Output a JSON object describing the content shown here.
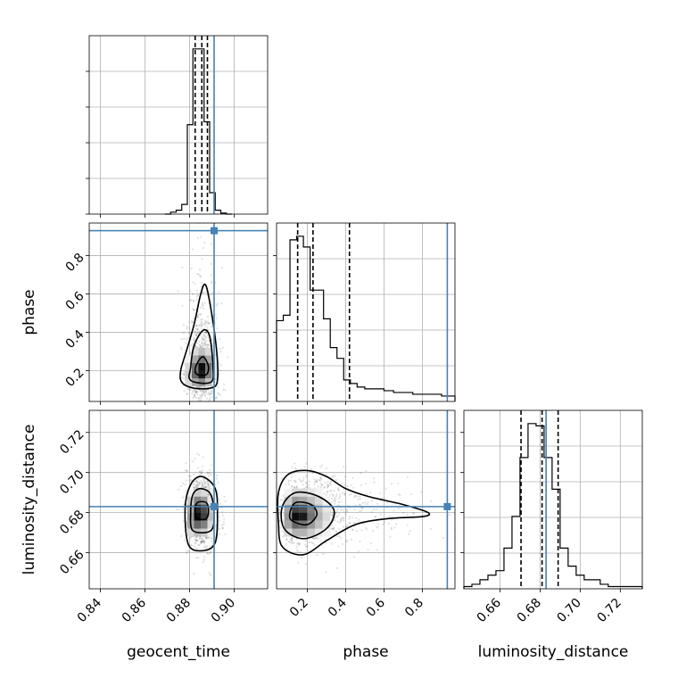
{
  "colors": {
    "truth": "#4682b4",
    "contour": "#000000",
    "grid": "#b0b0b0",
    "points": "#000000"
  },
  "chart_data": {
    "type": "corner",
    "parameters": [
      "geocent_time",
      "phase",
      "luminosity_distance"
    ],
    "axis_labels": {
      "geocent_time": "geocent_time",
      "phase": "phase",
      "luminosity_distance": "luminosity_distance"
    },
    "ranges": {
      "geocent_time": [
        0.835,
        0.915
      ],
      "phase": [
        0.04,
        0.97
      ],
      "luminosity_distance": [
        0.642,
        0.731
      ]
    },
    "ticks": {
      "geocent_time": [
        "0.84",
        "0.86",
        "0.88",
        "0.90"
      ],
      "phase": [
        "0.2",
        "0.4",
        "0.6",
        "0.8"
      ],
      "luminosity_distance": [
        "0.66",
        "0.68",
        "0.70",
        "0.72"
      ]
    },
    "truths": {
      "geocent_time": 0.891,
      "phase": 0.93,
      "luminosity_distance": 0.683
    },
    "quantiles": {
      "geocent_time": [
        0.8825,
        0.8855,
        0.888
      ],
      "phase": [
        0.15,
        0.23,
        0.42
      ],
      "luminosity_distance": [
        0.6705,
        0.681,
        0.689
      ]
    },
    "histograms": {
      "geocent_time": {
        "edges": [
          0.869,
          0.8715,
          0.874,
          0.8765,
          0.879,
          0.8815,
          0.884,
          0.8865,
          0.889,
          0.8915,
          0.894,
          0.8965,
          0.899
        ],
        "counts": [
          0,
          2,
          4,
          10,
          92,
          170,
          170,
          95,
          22,
          4,
          1,
          0
        ]
      },
      "phase": {
        "edges": [
          0.04,
          0.075,
          0.11,
          0.145,
          0.18,
          0.215,
          0.25,
          0.285,
          0.32,
          0.355,
          0.39,
          0.425,
          0.46,
          0.5,
          0.55,
          0.6,
          0.65,
          0.7,
          0.75,
          0.8,
          0.85,
          0.9,
          0.95,
          0.97
        ],
        "counts": [
          45,
          48,
          90,
          92,
          86,
          62,
          62,
          46,
          30,
          24,
          12,
          10,
          8,
          7,
          7,
          6,
          5,
          5,
          4,
          4,
          4,
          3,
          3
        ]
      },
      "luminosity_distance": {
        "edges": [
          0.642,
          0.646,
          0.65,
          0.654,
          0.658,
          0.662,
          0.666,
          0.67,
          0.674,
          0.678,
          0.682,
          0.686,
          0.69,
          0.694,
          0.698,
          0.702,
          0.706,
          0.71,
          0.714,
          0.718,
          0.722,
          0.726,
          0.731
        ],
        "counts": [
          1,
          2,
          4,
          6,
          8,
          18,
          32,
          58,
          73,
          72,
          58,
          44,
          18,
          10,
          6,
          4,
          4,
          2,
          1,
          1,
          1,
          1
        ]
      }
    },
    "contours_2d": {
      "geocent_time__phase": {
        "center": [
          0.8855,
          0.22
        ],
        "levels": [
          [
            [
              0.8835,
              0.18
            ],
            [
              0.8875,
              0.18
            ],
            [
              0.8885,
              0.22
            ],
            [
              0.8865,
              0.27
            ],
            [
              0.8845,
              0.26
            ],
            [
              0.8825,
              0.21
            ]
          ],
          [
            [
              0.8805,
              0.15
            ],
            [
              0.8895,
              0.14
            ],
            [
              0.8905,
              0.22
            ],
            [
              0.889,
              0.38
            ],
            [
              0.886,
              0.41
            ],
            [
              0.882,
              0.33
            ],
            [
              0.8805,
              0.22
            ]
          ],
          [
            [
              0.8765,
              0.14
            ],
            [
              0.8815,
              0.11
            ],
            [
              0.8895,
              0.11
            ],
            [
              0.8925,
              0.15
            ],
            [
              0.892,
              0.32
            ],
            [
              0.889,
              0.56
            ],
            [
              0.887,
              0.65
            ],
            [
              0.885,
              0.6
            ],
            [
              0.882,
              0.44
            ],
            [
              0.8785,
              0.3
            ],
            [
              0.876,
              0.2
            ]
          ]
        ]
      },
      "geocent_time__luminosity_distance": {
        "center": [
          0.8855,
          0.68
        ],
        "levels": [
          [
            [
              0.8835,
              0.677
            ],
            [
              0.8875,
              0.677
            ],
            [
              0.8885,
              0.681
            ],
            [
              0.8875,
              0.685
            ],
            [
              0.8835,
              0.685
            ],
            [
              0.8825,
              0.681
            ]
          ],
          [
            [
              0.8815,
              0.671
            ],
            [
              0.8895,
              0.671
            ],
            [
              0.891,
              0.679
            ],
            [
              0.8895,
              0.689
            ],
            [
              0.885,
              0.692
            ],
            [
              0.8815,
              0.689
            ],
            [
              0.8805,
              0.68
            ]
          ],
          [
            [
              0.8795,
              0.664
            ],
            [
              0.886,
              0.661
            ],
            [
              0.8915,
              0.665
            ],
            [
              0.8925,
              0.679
            ],
            [
              0.8915,
              0.692
            ],
            [
              0.8855,
              0.698
            ],
            [
              0.8805,
              0.694
            ],
            [
              0.878,
              0.682
            ]
          ]
        ]
      },
      "phase__luminosity_distance": {
        "center": [
          0.18,
          0.679
        ],
        "levels": [
          [
            [
              0.12,
              0.676
            ],
            [
              0.2,
              0.674
            ],
            [
              0.25,
              0.679
            ],
            [
              0.22,
              0.684
            ],
            [
              0.14,
              0.685
            ],
            [
              0.11,
              0.68
            ]
          ],
          [
            [
              0.08,
              0.672
            ],
            [
              0.18,
              0.667
            ],
            [
              0.3,
              0.672
            ],
            [
              0.34,
              0.681
            ],
            [
              0.26,
              0.688
            ],
            [
              0.14,
              0.69
            ],
            [
              0.07,
              0.683
            ]
          ],
          [
            [
              0.07,
              0.663
            ],
            [
              0.18,
              0.659
            ],
            [
              0.3,
              0.666
            ],
            [
              0.45,
              0.674
            ],
            [
              0.62,
              0.677
            ],
            [
              0.8,
              0.678
            ],
            [
              0.83,
              0.68
            ],
            [
              0.7,
              0.684
            ],
            [
              0.52,
              0.688
            ],
            [
              0.4,
              0.692
            ],
            [
              0.3,
              0.698
            ],
            [
              0.2,
              0.701
            ],
            [
              0.1,
              0.699
            ],
            [
              0.05,
              0.69
            ],
            [
              0.05,
              0.675
            ]
          ]
        ]
      }
    },
    "density_2d": {
      "geocent_time__phase": {
        "x_edges": [
          0.878,
          0.881,
          0.884,
          0.887,
          0.89,
          0.893
        ],
        "y_edges": [
          0.12,
          0.16,
          0.2,
          0.24,
          0.28,
          0.32
        ],
        "values": [
          [
            0.15,
            0.35,
            0.45,
            0.25,
            0.0
          ],
          [
            0.2,
            0.6,
            0.9,
            0.5,
            0.1
          ],
          [
            0.15,
            0.55,
            0.95,
            0.55,
            0.1
          ],
          [
            0.05,
            0.35,
            0.55,
            0.35,
            0.05
          ],
          [
            0.0,
            0.15,
            0.25,
            0.15,
            0.0
          ]
        ]
      },
      "geocent_time__luminosity_distance": {
        "x_edges": [
          0.879,
          0.882,
          0.885,
          0.888,
          0.891
        ],
        "y_edges": [
          0.668,
          0.672,
          0.676,
          0.68,
          0.684,
          0.688,
          0.692
        ],
        "values": [
          [
            0.15,
            0.25,
            0.2,
            0.05
          ],
          [
            0.35,
            0.6,
            0.5,
            0.15
          ],
          [
            0.4,
            0.95,
            0.75,
            0.25
          ],
          [
            0.35,
            0.85,
            0.7,
            0.2
          ],
          [
            0.2,
            0.5,
            0.4,
            0.1
          ],
          [
            0.05,
            0.2,
            0.15,
            0.0
          ]
        ]
      },
      "phase__luminosity_distance": {
        "x_edges": [
          0.08,
          0.12,
          0.16,
          0.2,
          0.24,
          0.28,
          0.32
        ],
        "y_edges": [
          0.668,
          0.672,
          0.676,
          0.68,
          0.684,
          0.688,
          0.692
        ],
        "values": [
          [
            0.15,
            0.3,
            0.3,
            0.2,
            0.1,
            0.05
          ],
          [
            0.35,
            0.6,
            0.55,
            0.4,
            0.25,
            0.1
          ],
          [
            0.4,
            0.95,
            0.9,
            0.55,
            0.3,
            0.15
          ],
          [
            0.35,
            0.75,
            0.7,
            0.5,
            0.25,
            0.1
          ],
          [
            0.2,
            0.4,
            0.35,
            0.25,
            0.15,
            0.05
          ],
          [
            0.05,
            0.15,
            0.15,
            0.1,
            0.05,
            0.0
          ]
        ]
      }
    },
    "samples_summary": {
      "geocent_time": {
        "mean": 0.8855,
        "sd": 0.0035
      },
      "phase": {
        "median": 0.23,
        "scale": 0.14
      },
      "luminosity_distance": {
        "mean": 0.6805,
        "sd": 0.009
      }
    }
  }
}
